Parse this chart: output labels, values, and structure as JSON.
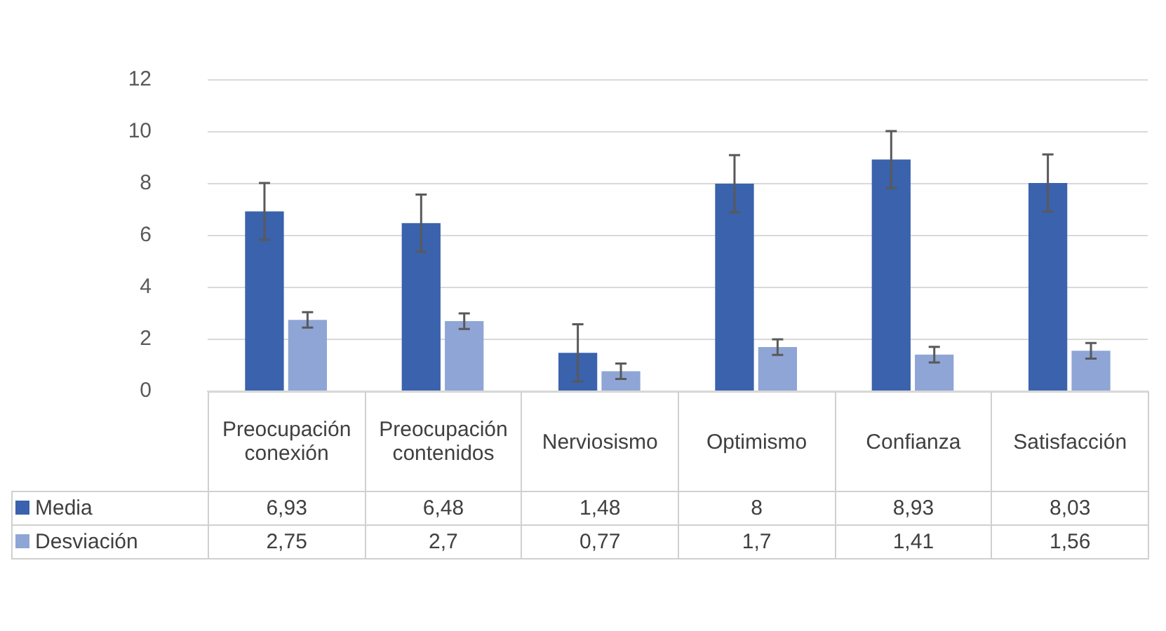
{
  "chart_data": {
    "type": "bar",
    "categories": [
      "Preocupación conexión",
      "Preocupación contenidos",
      "Nerviosismo",
      "Optimismo",
      "Confianza",
      "Satisfacción"
    ],
    "series": [
      {
        "name": "Media",
        "color": "#3a62ad",
        "values": [
          6.93,
          6.48,
          1.48,
          8,
          8.93,
          8.03
        ],
        "value_labels": [
          "6,93",
          "6,48",
          "1,48",
          "8",
          "8,93",
          "8,03"
        ],
        "errors": [
          1.1,
          1.1,
          1.1,
          1.1,
          1.1,
          1.1
        ]
      },
      {
        "name": "Desviación",
        "color": "#8fa5d6",
        "values": [
          2.75,
          2.7,
          0.77,
          1.7,
          1.41,
          1.56
        ],
        "value_labels": [
          "2,75",
          "2,7",
          "0,77",
          "1,7",
          "1,41",
          "1,56"
        ],
        "errors": [
          0.3,
          0.3,
          0.3,
          0.3,
          0.3,
          0.3
        ]
      }
    ],
    "ylim": [
      0,
      12
    ],
    "yticks": [
      0,
      2,
      4,
      6,
      8,
      10,
      12
    ],
    "grid": "y",
    "legend": "bottom"
  }
}
